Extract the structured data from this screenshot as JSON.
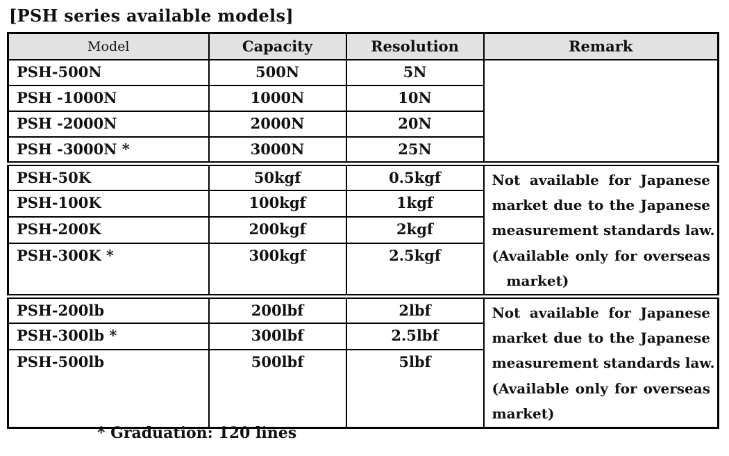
{
  "page": {
    "title": "[PSH series available models]",
    "footnote": "* Graduation: 120 lines"
  },
  "colors": {
    "header_bg": "#e2e2e2",
    "border": "#000000",
    "text": "#111111"
  },
  "table": {
    "columns": [
      "Model",
      "Capacity",
      "Resolution",
      "Remark"
    ],
    "groups": [
      {
        "rows": [
          {
            "model": "PSH-500N",
            "capacity": "500N",
            "resolution": "5N"
          },
          {
            "model": "PSH -1000N",
            "capacity": "1000N",
            "resolution": "10N"
          },
          {
            "model": "PSH -2000N",
            "capacity": "2000N",
            "resolution": "20N"
          },
          {
            "model": "PSH -3000N *",
            "capacity": "3000N",
            "resolution": "25N"
          }
        ],
        "remark_lines": []
      },
      {
        "rows": [
          {
            "model": "PSH-50K",
            "capacity": "50kgf",
            "resolution": "0.5kgf"
          },
          {
            "model": "PSH-100K",
            "capacity": "100kgf",
            "resolution": "1kgf"
          },
          {
            "model": "PSH-200K",
            "capacity": "200kgf",
            "resolution": "2kgf"
          },
          {
            "model": "PSH-300K *",
            "capacity": "300kgf",
            "resolution": "2.5kgf"
          }
        ],
        "remark_lines": [
          "Not available for Japanese",
          "market due to the Japanese",
          "measurement standards law.",
          "(Available only for overseas",
          "   market)"
        ]
      },
      {
        "rows": [
          {
            "model": "PSH-200lb",
            "capacity": "200lbf",
            "resolution": "2lbf"
          },
          {
            "model": "PSH-300lb *",
            "capacity": "300lbf",
            "resolution": "2.5lbf"
          },
          {
            "model": "PSH-500lb",
            "capacity": "500lbf",
            "resolution": "5lbf"
          }
        ],
        "remark_lines": [
          "Not available for Japanese",
          "market due to the Japanese",
          "measurement standards law.",
          "(Available only for overseas",
          "market)"
        ]
      }
    ]
  }
}
